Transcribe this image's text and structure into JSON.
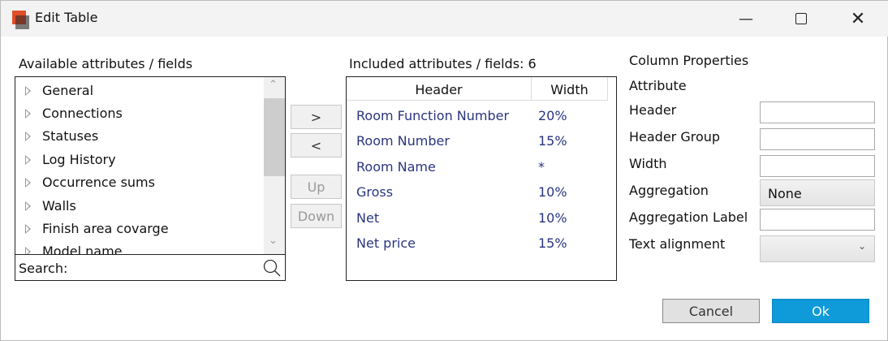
{
  "window": {
    "title": "Edit Table",
    "minimize_icon": "minimize-icon",
    "maximize_icon": "maximize-icon",
    "close_icon": "close-icon"
  },
  "available": {
    "label": "Available attributes / fields",
    "items": [
      "General",
      "Connections",
      "Statuses",
      "Log History",
      "Occurrence sums",
      "Walls",
      "Finish area covarge",
      "Model name"
    ],
    "search_label": "Search:"
  },
  "move_buttons": {
    "add": ">",
    "remove": "<",
    "up": "Up",
    "down": "Down"
  },
  "included": {
    "label": "Included attributes / fields: 6",
    "columns": [
      "Header",
      "Width"
    ],
    "rows": [
      [
        "Room Function Number",
        "20%"
      ],
      [
        "Room Number",
        "15%"
      ],
      [
        "Room Name",
        "*"
      ],
      [
        "Gross",
        "10%"
      ],
      [
        "Net",
        "10%"
      ],
      [
        "Net price",
        "15%"
      ]
    ]
  },
  "properties": {
    "title": "Column Properties",
    "attribute_label": "Attribute",
    "header_label": "Header",
    "header_value": "",
    "header_group_label": "Header Group",
    "header_group_value": "",
    "width_label": "Width",
    "width_value": "",
    "aggregation_label": "Aggregation",
    "aggregation_value": "None",
    "aggregation_label_label": "Aggregation Label",
    "aggregation_label_value": "",
    "text_alignment_label": "Text alignment",
    "text_alignment_value": ""
  },
  "footer": {
    "cancel": "Cancel",
    "ok": "Ok"
  },
  "colors": {
    "accent": "#0f9ad9",
    "logo": "#e0502a"
  }
}
